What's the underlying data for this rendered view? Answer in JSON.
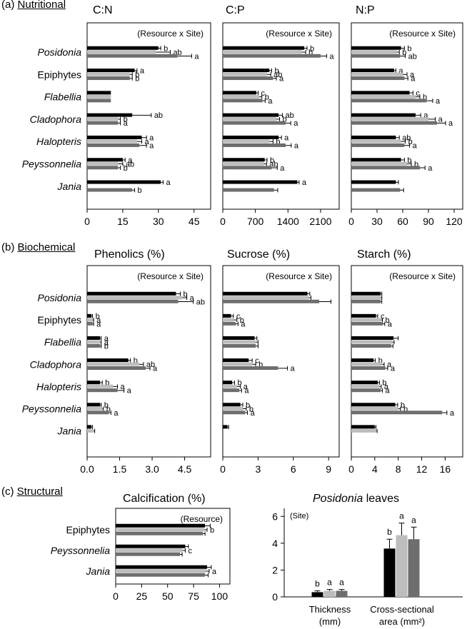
{
  "sections": [
    {
      "letter": "(a)",
      "label": "Nutritional"
    },
    {
      "letter": "(b)",
      "label": "Biochemical"
    },
    {
      "letter": "(c)",
      "label": "Structural"
    }
  ],
  "colors": {
    "series1": "#000000",
    "series2": "#bdbdbd",
    "series3": "#6e6e6e"
  },
  "chart_data": [
    {
      "type": "bar",
      "orientation": "horizontal",
      "title": "C:N",
      "annotation": "(Resource x Site)",
      "categories": [
        "Posidonia",
        "Epiphytes",
        "Flabellia",
        "Cladophora",
        "Halopteris",
        "Peyssonnelia",
        "Jania"
      ],
      "italic": [
        true,
        false,
        true,
        true,
        true,
        true,
        true
      ],
      "xlim": [
        0,
        52
      ],
      "xticks": [
        0,
        15,
        30,
        45
      ],
      "series": [
        {
          "values": [
            30,
            20,
            10,
            19,
            23,
            15,
            31
          ],
          "errors": [
            1,
            1,
            0,
            8,
            2,
            1,
            1
          ]
        },
        {
          "values": [
            29,
            18,
            10,
            13,
            21,
            13,
            null
          ],
          "errors": [
            6,
            1,
            0,
            1,
            2,
            2,
            null
          ]
        },
        {
          "values": [
            38,
            18,
            10,
            13,
            22,
            13,
            19
          ],
          "errors": [
            6,
            1,
            0,
            1,
            3,
            1,
            1
          ]
        }
      ],
      "letters": [
        [
          "b",
          "ab",
          "a"
        ],
        [
          "a",
          "b",
          "b"
        ],
        [
          "",
          "",
          ""
        ],
        [
          "ab",
          "b",
          "a"
        ],
        [
          "a",
          "a",
          "a"
        ],
        [
          "a",
          "ab",
          "b"
        ],
        [
          "a",
          "",
          "b"
        ]
      ]
    },
    {
      "type": "bar",
      "orientation": "horizontal",
      "title": "C:P",
      "annotation": "(Resource x Site)",
      "categories": [
        "Posidonia",
        "Epiphytes",
        "Flabellia",
        "Cladophora",
        "Halopteris",
        "Peyssonnelia",
        "Jania"
      ],
      "italic": [
        true,
        false,
        true,
        true,
        true,
        true,
        true
      ],
      "xlim": [
        0,
        2500
      ],
      "xticks": [
        0,
        700,
        1400,
        2100
      ],
      "series": [
        {
          "values": [
            1750,
            1000,
            720,
            1200,
            1200,
            900,
            1600
          ],
          "errors": [
            60,
            50,
            40,
            80,
            60,
            50,
            40
          ]
        },
        {
          "values": [
            1700,
            950,
            780,
            1150,
            1000,
            880,
            null
          ],
          "errors": [
            80,
            80,
            60,
            70,
            80,
            60,
            null
          ]
        },
        {
          "values": [
            2100,
            1080,
            850,
            1350,
            1350,
            1050,
            1100
          ],
          "errors": [
            130,
            70,
            60,
            110,
            120,
            120,
            80
          ]
        }
      ],
      "letters": [
        [
          "b",
          "b",
          "a"
        ],
        [
          "b",
          "ab",
          "a"
        ],
        [
          "c",
          "b",
          "a"
        ],
        [
          "ab",
          "b",
          "a"
        ],
        [
          "a",
          "b",
          "a"
        ],
        [
          "b",
          "ab",
          "a"
        ],
        [
          "a",
          "",
          ""
        ]
      ]
    },
    {
      "type": "bar",
      "orientation": "horizontal",
      "title": "N:P",
      "annotation": "(Resource x Site)",
      "categories": [
        "Posidonia",
        "Epiphytes",
        "Flabellia",
        "Cladophora",
        "Halopteris",
        "Peyssonnelia",
        "Jania"
      ],
      "italic": [
        true,
        false,
        true,
        true,
        true,
        true,
        true
      ],
      "xlim": [
        0,
        130
      ],
      "xticks": [
        0,
        30,
        60,
        90,
        120
      ],
      "series": [
        {
          "values": [
            58,
            50,
            68,
            75,
            52,
            58,
            52
          ],
          "errors": [
            4,
            2,
            4,
            6,
            4,
            4,
            3
          ]
        },
        {
          "values": [
            53,
            60,
            75,
            90,
            58,
            65,
            null
          ],
          "errors": [
            3,
            5,
            5,
            8,
            5,
            5,
            null
          ]
        },
        {
          "values": [
            57,
            62,
            88,
            100,
            62,
            80,
            57
          ],
          "errors": [
            6,
            4,
            7,
            10,
            6,
            6,
            4
          ]
        }
      ],
      "letters": [
        [
          "b",
          "b",
          "ab"
        ],
        [
          "a",
          "a",
          "a"
        ],
        [
          "c",
          "b",
          "a"
        ],
        [
          "a",
          "a",
          "a"
        ],
        [
          "ab",
          "b",
          "a"
        ],
        [
          "b",
          "b",
          "a"
        ],
        [
          "",
          "",
          ""
        ]
      ]
    },
    {
      "type": "bar",
      "orientation": "horizontal",
      "title": "Phenolics (%)",
      "annotation": "(Resource x Site)",
      "categories": [
        "Posidonia",
        "Epiphytes",
        "Flabellia",
        "Cladophora",
        "Halopteris",
        "Peyssonnelia",
        "Jania"
      ],
      "italic": [
        true,
        false,
        true,
        true,
        true,
        true,
        true
      ],
      "xlim": [
        0,
        5.7
      ],
      "xticks": [
        "0.0",
        "1.5",
        "3.0",
        "4.5"
      ],
      "series": [
        {
          "values": [
            4.1,
            0.2,
            0.6,
            1.9,
            0.6,
            0.6,
            0.2
          ],
          "errors": [
            0.2,
            0.05,
            0.05,
            0.1,
            0.1,
            0.05,
            0.05
          ]
        },
        {
          "values": [
            4.4,
            0.25,
            0.6,
            2.4,
            1.2,
            0.7,
            0.3
          ],
          "errors": [
            0.2,
            0.05,
            0.05,
            0.2,
            0.2,
            0.05,
            0.05
          ]
        },
        {
          "values": [
            4.2,
            0.25,
            0.6,
            2.7,
            1.4,
            1.0,
            null
          ],
          "errors": [
            0.7,
            0.05,
            0.05,
            0.2,
            0.3,
            0.1,
            null
          ]
        }
      ],
      "letters": [
        [
          "b",
          "a",
          "ab"
        ],
        [
          "b",
          "a",
          "a"
        ],
        [
          "a",
          "a",
          "b"
        ],
        [
          "b",
          "ab",
          "a"
        ],
        [
          "b",
          "a",
          "a"
        ],
        [
          "b",
          "b",
          "a"
        ],
        [
          "",
          "",
          ""
        ]
      ]
    },
    {
      "type": "bar",
      "orientation": "horizontal",
      "title": "Sucrose (%)",
      "annotation": "(Resource x Site)",
      "categories": [
        "Posidonia",
        "Epiphytes",
        "Flabellia",
        "Cladophora",
        "Halopteris",
        "Peyssonnelia",
        "Jania"
      ],
      "italic": [
        true,
        false,
        true,
        true,
        true,
        true,
        true
      ],
      "xlim": [
        0,
        9.9
      ],
      "xticks": [
        0,
        3,
        6,
        9
      ],
      "series": [
        {
          "values": [
            7.2,
            0.7,
            2.7,
            2.2,
            0.8,
            1.5,
            0.4
          ],
          "errors": [
            0.2,
            0.2,
            0.2,
            0.3,
            0.2,
            0.2,
            0.1
          ]
        },
        {
          "values": [
            7.3,
            0.9,
            2.8,
            2.5,
            1.2,
            1.7,
            null
          ],
          "errors": [
            0.2,
            0.3,
            0.2,
            0.3,
            0.3,
            0.3,
            null
          ]
        },
        {
          "values": [
            8.2,
            1.1,
            2.8,
            4.7,
            1.4,
            1.9,
            null
          ],
          "errors": [
            1.0,
            0.2,
            0.2,
            0.8,
            0.2,
            0.2,
            null
          ]
        }
      ],
      "letters": [
        [
          "",
          "",
          ""
        ],
        [
          "c",
          "b",
          "a"
        ],
        [
          "",
          "",
          ""
        ],
        [
          "c",
          "b",
          "a"
        ],
        [
          "b",
          "a",
          "a"
        ],
        [
          "b",
          "b",
          "a"
        ],
        [
          "",
          "",
          ""
        ]
      ]
    },
    {
      "type": "bar",
      "orientation": "horizontal",
      "title": "Starch (%)",
      "annotation": "(Resource x Site)",
      "categories": [
        "Posidonia",
        "Epiphytes",
        "Flabellia",
        "Cladophora",
        "Halopteris",
        "Peyssonnelia",
        "Jania"
      ],
      "italic": [
        true,
        false,
        true,
        true,
        true,
        true,
        true
      ],
      "xlim": [
        0,
        19
      ],
      "xticks": [
        0,
        4,
        8,
        12,
        16
      ],
      "series": [
        {
          "values": [
            5.0,
            4.2,
            7.2,
            3.8,
            4.5,
            7.5,
            4.0
          ],
          "errors": [
            0.2,
            0.3,
            0.8,
            0.3,
            0.3,
            0.4,
            0.2
          ]
        },
        {
          "values": [
            5.0,
            5.0,
            7.0,
            5.2,
            4.8,
            8.0,
            4.2
          ],
          "errors": [
            0.2,
            0.3,
            0.3,
            0.4,
            0.3,
            0.4,
            0.2
          ]
        },
        {
          "values": [
            5.0,
            5.4,
            6.8,
            5.8,
            5.0,
            15.5,
            null
          ],
          "errors": [
            0.2,
            0.3,
            0.3,
            0.4,
            0.3,
            0.8,
            null
          ]
        }
      ],
      "letters": [
        [
          "",
          "",
          ""
        ],
        [
          "c",
          "b",
          "a"
        ],
        [
          "",
          "",
          ""
        ],
        [
          "b",
          "a",
          "a"
        ],
        [
          "b",
          "a",
          "a"
        ],
        [
          "b",
          "b",
          "a"
        ],
        [
          "",
          "",
          ""
        ]
      ]
    },
    {
      "type": "bar",
      "orientation": "horizontal",
      "title": "Calcification (%)",
      "annotation": "(Resource)",
      "categories": [
        "Epiphytes",
        "Peyssonnelia",
        "Jania"
      ],
      "italic": [
        false,
        true,
        true
      ],
      "xlim": [
        0,
        110
      ],
      "xticks": [
        0,
        25,
        50,
        75,
        100
      ],
      "series": [
        {
          "values": [
            86,
            67,
            88
          ],
          "errors": [
            5,
            3,
            4
          ]
        },
        {
          "values": [
            85,
            64,
            87
          ],
          "errors": [
            3,
            3,
            3
          ]
        },
        {
          "values": [
            84,
            62,
            86
          ],
          "errors": [
            2,
            2,
            3
          ]
        }
      ],
      "letters": [
        [
          "",
          "b",
          ""
        ],
        [
          "",
          "c",
          ""
        ],
        [
          "",
          "a",
          ""
        ]
      ],
      "letterMode": "group"
    },
    {
      "type": "bar",
      "orientation": "vertical",
      "title_italic": "Posidonia",
      "title_rest": " leaves",
      "annotation": "(Site)",
      "categories": [
        [
          "Thickness",
          "(mm)"
        ],
        [
          "Cross-sectional",
          "area (mm²)"
        ]
      ],
      "ylim": [
        0,
        6.6
      ],
      "yticks": [
        0,
        2,
        4,
        6
      ],
      "series": [
        {
          "values": [
            0.35,
            3.6
          ],
          "errors": [
            0.1,
            0.7
          ]
        },
        {
          "values": [
            0.45,
            4.6
          ],
          "errors": [
            0.1,
            0.9
          ]
        },
        {
          "values": [
            0.45,
            4.3
          ],
          "errors": [
            0.1,
            0.9
          ]
        }
      ],
      "letters": [
        [
          "b",
          "a",
          "a"
        ],
        [
          "b",
          "a",
          "a"
        ]
      ]
    }
  ]
}
